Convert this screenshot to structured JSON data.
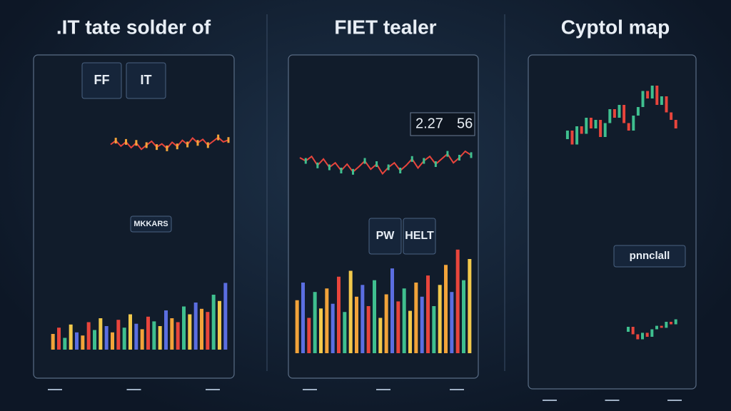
{
  "panels": [
    {
      "title": ".IT tate solder of",
      "tiles": [
        "FF",
        "IT",
        "MKKARS"
      ],
      "charts": [
        {
          "kind": "line",
          "ylim": [
            0,
            100
          ],
          "colors": [
            "#e8453c",
            "#f2a33a"
          ],
          "values": [
            50,
            62,
            45,
            58,
            40,
            55,
            35,
            48,
            60,
            42,
            52,
            38,
            57,
            44,
            63,
            50,
            70,
            55,
            66,
            48,
            60,
            72,
            58,
            64
          ]
        },
        {
          "kind": "bars",
          "ylim": [
            0,
            100
          ],
          "colors": [
            "#f2a33a",
            "#e8453c",
            "#3fbf8f",
            "#f2c94c",
            "#5b6ee1"
          ],
          "values": [
            20,
            28,
            15,
            32,
            22,
            18,
            35,
            25,
            40,
            30,
            22,
            38,
            28,
            45,
            33,
            26,
            42,
            36,
            30,
            50,
            40,
            35,
            55,
            45,
            60,
            52,
            48,
            70,
            62,
            85
          ]
        }
      ]
    },
    {
      "title": "FIET tealer",
      "tiles": [
        "PW",
        "HELT"
      ],
      "price": "2.27",
      "change": "56",
      "charts": [
        {
          "kind": "line",
          "ylim": [
            0,
            100
          ],
          "colors": [
            "#e8453c",
            "#3fbf8f"
          ],
          "values": [
            60,
            55,
            62,
            48,
            58,
            45,
            52,
            40,
            50,
            38,
            46,
            55,
            42,
            50,
            35,
            45,
            52,
            40,
            48,
            58,
            44,
            55,
            62,
            50,
            58,
            66,
            52,
            60,
            70,
            64
          ]
        },
        {
          "kind": "bars",
          "ylim": [
            0,
            100
          ],
          "colors": [
            "#f2a33a",
            "#5b6ee1",
            "#e8453c",
            "#3fbf8f",
            "#f2c94c"
          ],
          "values": [
            45,
            60,
            30,
            52,
            38,
            55,
            42,
            65,
            35,
            70,
            48,
            58,
            40,
            62,
            30,
            50,
            72,
            44,
            55,
            36,
            60,
            48,
            66,
            40,
            58,
            75,
            52,
            88,
            62,
            80
          ]
        }
      ]
    },
    {
      "title": "Cyptol map",
      "tiles": [
        "pnnclall"
      ],
      "charts": [
        {
          "kind": "candles",
          "ylim": [
            0,
            100
          ],
          "colors": [
            "#3fbf8f",
            "#e8453c"
          ],
          "values": [
            40,
            48,
            35,
            52,
            45,
            60,
            50,
            58,
            42,
            55,
            68,
            60,
            72,
            55,
            48,
            62,
            70,
            85,
            78,
            90,
            72,
            80,
            65,
            58,
            50
          ]
        },
        {
          "kind": "candles",
          "ylim": [
            0,
            100
          ],
          "colors": [
            "#3fbf8f",
            "#e8453c"
          ],
          "values": [
            50,
            60,
            45,
            35,
            48,
            40,
            55,
            62,
            58,
            70,
            65,
            75
          ]
        }
      ]
    }
  ]
}
